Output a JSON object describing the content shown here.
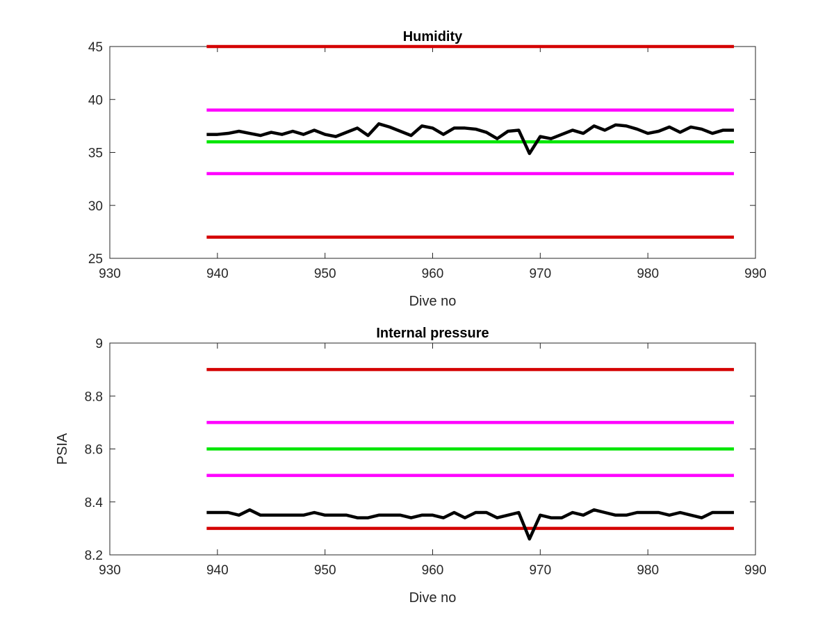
{
  "chart_data": [
    {
      "type": "line",
      "title": "Humidity",
      "xlabel": "Dive no",
      "ylabel": "",
      "xlim": [
        930,
        990
      ],
      "ylim": [
        25,
        45
      ],
      "xticks": [
        930,
        940,
        950,
        960,
        970,
        980,
        990
      ],
      "yticks": [
        25,
        30,
        35,
        40,
        45
      ],
      "xtick_labels": [
        "930",
        "940",
        "950",
        "960",
        "970",
        "980",
        "990"
      ],
      "ytick_labels": [
        "25",
        "30",
        "35",
        "40",
        "45"
      ],
      "grid": false,
      "series": [
        {
          "color": "#d40000",
          "x": [
            939,
            988
          ],
          "y": [
            45,
            45
          ]
        },
        {
          "color": "#ff00ff",
          "x": [
            939,
            988
          ],
          "y": [
            39,
            39
          ]
        },
        {
          "color": "#00e600",
          "x": [
            939,
            988
          ],
          "y": [
            36,
            36
          ]
        },
        {
          "color": "#ff00ff",
          "x": [
            939,
            988
          ],
          "y": [
            33,
            33
          ]
        },
        {
          "color": "#d40000",
          "x": [
            939,
            988
          ],
          "y": [
            27,
            27
          ]
        },
        {
          "color": "#000000",
          "x": [
            939,
            940,
            941,
            942,
            943,
            944,
            945,
            946,
            947,
            948,
            949,
            950,
            951,
            952,
            953,
            954,
            955,
            956,
            957,
            958,
            959,
            960,
            961,
            962,
            963,
            964,
            965,
            966,
            967,
            968,
            969,
            970,
            971,
            972,
            973,
            974,
            975,
            976,
            977,
            978,
            979,
            980,
            981,
            982,
            983,
            984,
            985,
            986,
            987,
            988
          ],
          "y": [
            36.7,
            36.7,
            36.8,
            37.0,
            36.8,
            36.6,
            36.9,
            36.7,
            37.0,
            36.7,
            37.1,
            36.7,
            36.5,
            36.9,
            37.3,
            36.6,
            37.7,
            37.4,
            37.0,
            36.6,
            37.5,
            37.3,
            36.7,
            37.3,
            37.3,
            37.2,
            36.9,
            36.3,
            37.0,
            37.1,
            34.9,
            36.5,
            36.3,
            36.7,
            37.1,
            36.8,
            37.5,
            37.1,
            37.6,
            37.5,
            37.2,
            36.8,
            37.0,
            37.4,
            36.9,
            37.4,
            37.2,
            36.8,
            37.1,
            37.1
          ]
        }
      ]
    },
    {
      "type": "line",
      "title": "Internal pressure",
      "xlabel": "Dive no",
      "ylabel": "PSIA",
      "xlim": [
        930,
        990
      ],
      "ylim": [
        8.2,
        9.0
      ],
      "xticks": [
        930,
        940,
        950,
        960,
        970,
        980,
        990
      ],
      "yticks": [
        8.2,
        8.4,
        8.6,
        8.8,
        9.0
      ],
      "xtick_labels": [
        "930",
        "940",
        "950",
        "960",
        "970",
        "980",
        "990"
      ],
      "ytick_labels": [
        "8.2",
        "8.4",
        "8.6",
        "8.8",
        "9"
      ],
      "grid": false,
      "series": [
        {
          "color": "#d40000",
          "x": [
            939,
            988
          ],
          "y": [
            8.9,
            8.9
          ]
        },
        {
          "color": "#ff00ff",
          "x": [
            939,
            988
          ],
          "y": [
            8.7,
            8.7
          ]
        },
        {
          "color": "#00e600",
          "x": [
            939,
            988
          ],
          "y": [
            8.6,
            8.6
          ]
        },
        {
          "color": "#ff00ff",
          "x": [
            939,
            988
          ],
          "y": [
            8.5,
            8.5
          ]
        },
        {
          "color": "#d40000",
          "x": [
            939,
            988
          ],
          "y": [
            8.3,
            8.3
          ]
        },
        {
          "color": "#000000",
          "x": [
            939,
            940,
            941,
            942,
            943,
            944,
            945,
            946,
            947,
            948,
            949,
            950,
            951,
            952,
            953,
            954,
            955,
            956,
            957,
            958,
            959,
            960,
            961,
            962,
            963,
            964,
            965,
            966,
            967,
            968,
            969,
            970,
            971,
            972,
            973,
            974,
            975,
            976,
            977,
            978,
            979,
            980,
            981,
            982,
            983,
            984,
            985,
            986,
            987,
            988
          ],
          "y": [
            8.36,
            8.36,
            8.36,
            8.35,
            8.37,
            8.35,
            8.35,
            8.35,
            8.35,
            8.35,
            8.36,
            8.35,
            8.35,
            8.35,
            8.34,
            8.34,
            8.35,
            8.35,
            8.35,
            8.34,
            8.35,
            8.35,
            8.34,
            8.36,
            8.34,
            8.36,
            8.36,
            8.34,
            8.35,
            8.36,
            8.26,
            8.35,
            8.34,
            8.34,
            8.36,
            8.35,
            8.37,
            8.36,
            8.35,
            8.35,
            8.36,
            8.36,
            8.36,
            8.35,
            8.36,
            8.35,
            8.34,
            8.36,
            8.36,
            8.36
          ]
        }
      ]
    }
  ]
}
